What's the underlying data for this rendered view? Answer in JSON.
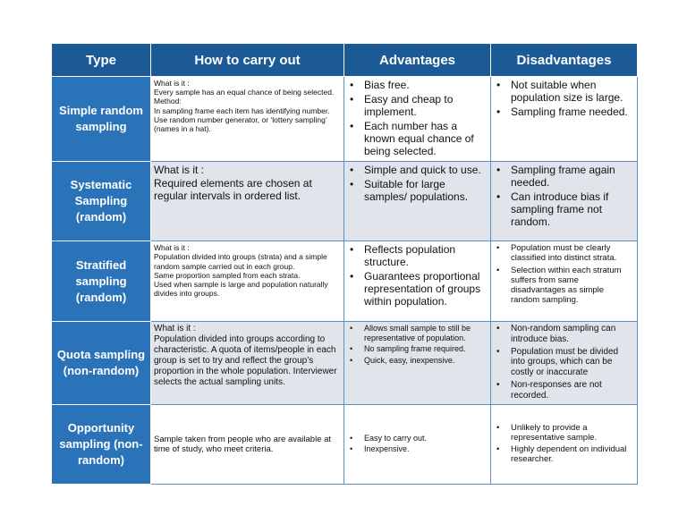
{
  "table": {
    "header": [
      "Type",
      "How to carry out",
      "Advantages",
      "Disadvantages"
    ],
    "rows": [
      {
        "type": "Simple random sampling",
        "how": [
          "What is it :",
          "Every sample has an equal chance of being selected.",
          "Method:",
          "In sampling frame each item has identifying number. Use random number generator, or ‘lottery sampling’ (names in a hat)."
        ],
        "advantages": [
          "Bias free.",
          "Easy and cheap to implement.",
          "Each number has a known equal chance of being selected."
        ],
        "disadvantages": [
          "Not suitable when population size is large.",
          "Sampling frame needed."
        ]
      },
      {
        "type": "Systematic Sampling (random)",
        "how": [
          "What is it :",
          "Required elements are chosen at regular intervals in ordered list."
        ],
        "advantages": [
          "Simple and quick to use.",
          "Suitable for large samples/ populations."
        ],
        "disadvantages": [
          "Sampling frame again needed.",
          "Can introduce bias if sampling frame not random."
        ]
      },
      {
        "type": "Stratified sampling (random)",
        "how": [
          "What is it :",
          "Population divided into groups (strata) and a simple random sample carried out in each group.",
          "Same proportion  sampled from each strata.",
          "Used when sample is large and population naturally divides into groups."
        ],
        "advantages": [
          "Reflects population structure.",
          "Guarantees proportional representation of groups within population."
        ],
        "disadvantages": [
          "Population must be clearly classified into distinct strata.",
          "Selection within each stratum suffers from same disadvantages as simple random sampling."
        ]
      },
      {
        "type": "Quota sampling (non-random)",
        "how": [
          "What is it :",
          "Population divided into groups according to characteristic.  A quota of items/people in each group is set to try and reflect the group’s proportion in the whole population. Interviewer selects the actual sampling units."
        ],
        "advantages": [
          "Allows small sample to still be representative of population.",
          "No sampling frame required.",
          "Quick, easy, inexpensive."
        ],
        "disadvantages": [
          "Non-random sampling can introduce bias.",
          "Population must be divided into groups, which can be costly or inaccurate",
          "Non-responses are not recorded."
        ]
      },
      {
        "type": "Opportunity sampling (non-random)",
        "how": [
          "Sample taken from people who are available at time of study, who meet criteria."
        ],
        "advantages": [
          "Easy to carry out.",
          "Inexpensive."
        ],
        "disadvantages": [
          "Unlikely to provide a representative sample.",
          "Highly dependent on individual researcher."
        ]
      }
    ]
  }
}
